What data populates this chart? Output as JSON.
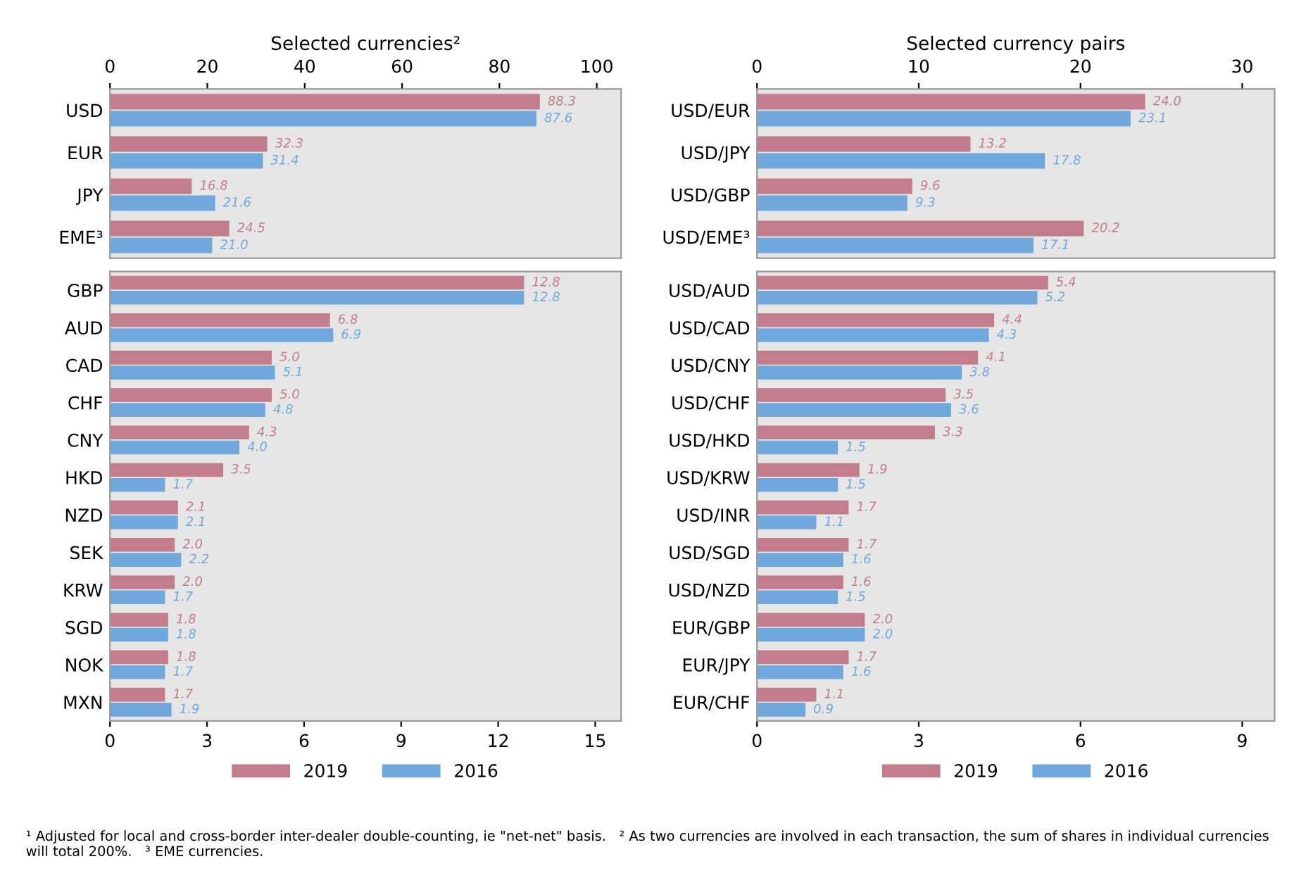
{
  "chart_data": [
    {
      "type": "bar",
      "orientation": "horizontal",
      "title": "Selected currencies²",
      "categories": [
        "USD",
        "EUR",
        "JPY",
        "EME³"
      ],
      "x2lim": [
        0,
        105
      ],
      "x2ticks": [
        0,
        20,
        40,
        60,
        80,
        100
      ],
      "series": [
        {
          "color": "#c27c8c",
          "values": [
            88.3,
            32.3,
            16.8,
            24.5
          ],
          "value_labels": [
            "88.3",
            "32.3",
            "16.8",
            "24.5"
          ]
        },
        {
          "color": "#6fa8dc",
          "values": [
            87.6,
            31.4,
            21.6,
            21.0
          ],
          "value_labels": [
            "87.6",
            "31.4",
            "21.6",
            "21.0"
          ]
        }
      ]
    },
    {
      "type": "bar",
      "orientation": "horizontal",
      "categories": [
        "GBP",
        "AUD",
        "CAD",
        "CHF",
        "CNY",
        "HKD",
        "NZD",
        "SEK",
        "KRW",
        "SGD",
        "NOK",
        "MXN"
      ],
      "xlim": [
        0,
        15.8
      ],
      "xticks": [
        0,
        3,
        6,
        9,
        12,
        15
      ],
      "legend": "bottom",
      "series": [
        {
          "name": "2019",
          "color": "#c27c8c",
          "values": [
            12.8,
            6.8,
            5.0,
            5.0,
            4.3,
            3.5,
            2.1,
            2.0,
            2.0,
            1.8,
            1.8,
            1.7
          ],
          "value_labels": [
            "12.8",
            "6.8",
            "5.0",
            "5.0",
            "4.3",
            "3.5",
            "2.1",
            "2.0",
            "2.0",
            "1.8",
            "1.8",
            "1.7"
          ]
        },
        {
          "name": "2016",
          "color": "#6fa8dc",
          "values": [
            12.8,
            6.9,
            5.1,
            4.8,
            4.0,
            1.7,
            2.1,
            2.2,
            1.7,
            1.8,
            1.7,
            1.9
          ],
          "value_labels": [
            "12.8",
            "6.9",
            "5.1",
            "4.8",
            "4.0",
            "1.7",
            "2.1",
            "2.2",
            "1.7",
            "1.8",
            "1.7",
            "1.9"
          ]
        }
      ]
    },
    {
      "type": "bar",
      "orientation": "horizontal",
      "title": "Selected currency pairs",
      "categories": [
        "USD/EUR",
        "USD/JPY",
        "USD/GBP",
        "USD/EME³"
      ],
      "x2lim": [
        0,
        32
      ],
      "x2ticks": [
        0,
        10,
        20,
        30
      ],
      "series": [
        {
          "color": "#c27c8c",
          "values": [
            24.0,
            13.2,
            9.6,
            20.2
          ],
          "value_labels": [
            "24.0",
            "13.2",
            "9.6",
            "20.2"
          ]
        },
        {
          "color": "#6fa8dc",
          "values": [
            23.1,
            17.8,
            9.3,
            17.1
          ],
          "value_labels": [
            "23.1",
            "17.8",
            "9.3",
            "17.1"
          ]
        }
      ]
    },
    {
      "type": "bar",
      "orientation": "horizontal",
      "categories": [
        "USD/AUD",
        "USD/CAD",
        "USD/CNY",
        "USD/CHF",
        "USD/HKD",
        "USD/KRW",
        "USD/INR",
        "USD/SGD",
        "USD/NZD",
        "EUR/GBP",
        "EUR/JPY",
        "EUR/CHF"
      ],
      "xlim": [
        0,
        9.6
      ],
      "xticks": [
        0,
        3,
        6,
        9
      ],
      "legend": "bottom",
      "annotations": [
        "¹ Adjusted for local and cross-border inter-dealer double-counting, ie \"net-net\" basis.   ² As two currencies are involved in each transaction, the sum of shares in individual currencies will total 200%.   ³ EME currencies."
      ],
      "series": [
        {
          "name": "2019",
          "color": "#c27c8c",
          "values": [
            5.4,
            4.4,
            4.1,
            3.5,
            3.3,
            1.9,
            1.7,
            1.7,
            1.6,
            2.0,
            1.7,
            1.1
          ],
          "value_labels": [
            "5.4",
            "4.4",
            "4.1",
            "3.5",
            "3.3",
            "1.9",
            "1.7",
            "1.7",
            "1.6",
            "2.0",
            "1.7",
            "1.1"
          ]
        },
        {
          "name": "2016",
          "color": "#6fa8dc",
          "values": [
            5.2,
            4.3,
            3.8,
            3.6,
            1.5,
            1.5,
            1.1,
            1.6,
            1.5,
            2.0,
            1.6,
            0.9
          ],
          "value_labels": [
            "5.2",
            "4.3",
            "3.8",
            "3.6",
            "1.5",
            "1.5",
            "1.1",
            "1.6",
            "1.5",
            "2.0",
            "1.6",
            "0.9"
          ]
        }
      ]
    }
  ]
}
